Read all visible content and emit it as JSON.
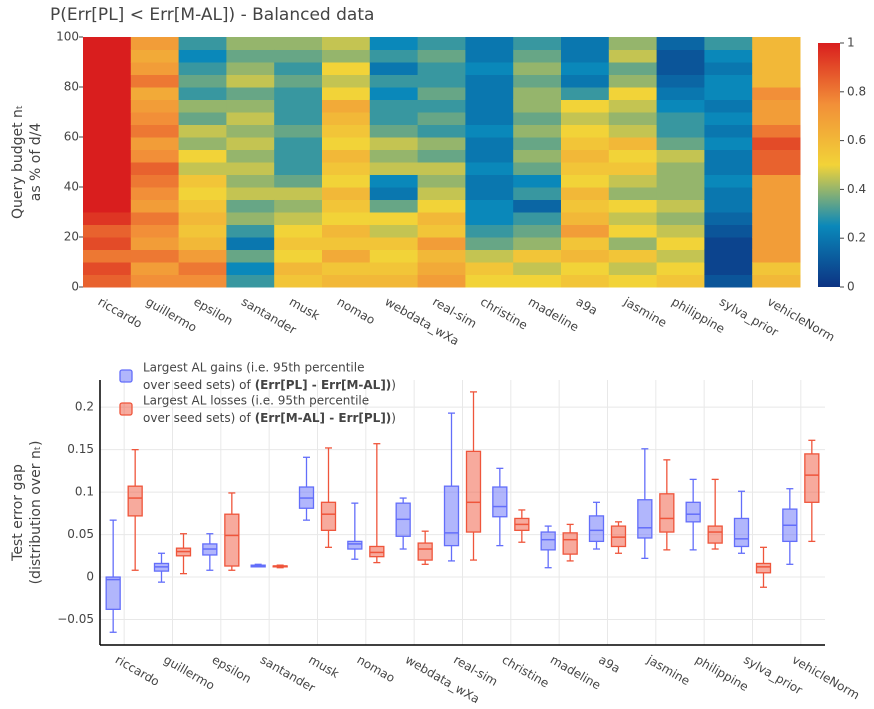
{
  "chart_data": [
    {
      "type": "heatmap",
      "title": "P(Err[PL] < Err[M-AL]) - Balanced data",
      "y_label": [
        "Query budget nₜ",
        "as % of d/4"
      ],
      "categories": [
        "riccardo",
        "guillermo",
        "epsilon",
        "santander",
        "musk",
        "nomao",
        "webdata_wXa",
        "real-sim",
        "christine",
        "madeline",
        "a9a",
        "jasmine",
        "philippine",
        "sylva_prior",
        "vehicleNorm"
      ],
      "ylim": [
        0,
        100
      ],
      "yticks": [
        0,
        20,
        40,
        60,
        80,
        100
      ],
      "colorscale": [
        [
          0,
          "rgb(12,51,131)"
        ],
        [
          0.25,
          "rgb(10,136,186)"
        ],
        [
          0.5,
          "rgb(242,211,56)"
        ],
        [
          0.75,
          "rgb(242,143,56)"
        ],
        [
          1,
          "rgb(217,30,30)"
        ]
      ],
      "zlim": [
        0,
        1
      ],
      "colorbar_ticks": [
        0,
        0.2,
        0.4,
        0.6,
        0.8,
        1
      ],
      "z": [
        [
          0.85,
          0.9,
          0.8,
          0.9,
          0.85,
          0.95,
          1,
          1,
          1,
          1,
          1,
          1,
          1,
          1,
          1,
          1,
          1,
          1,
          1,
          1
        ],
        [
          0.75,
          0.7,
          0.8,
          0.7,
          0.75,
          0.8,
          0.7,
          0.75,
          0.8,
          0.85,
          0.75,
          0.7,
          0.8,
          0.75,
          0.7,
          0.65,
          0.8,
          0.7,
          0.65,
          0.7
        ],
        [
          0.75,
          0.8,
          0.7,
          0.6,
          0.55,
          0.6,
          0.55,
          0.5,
          0.55,
          0.45,
          0.5,
          0.4,
          0.45,
          0.35,
          0.4,
          0.3,
          0.35,
          0.3,
          0.25,
          0.3
        ],
        [
          0.3,
          0.25,
          0.35,
          0.2,
          0.3,
          0.4,
          0.35,
          0.45,
          0.4,
          0.45,
          0.4,
          0.45,
          0.4,
          0.45,
          0.4,
          0.35,
          0.45,
          0.4,
          0.35,
          0.4
        ],
        [
          0.55,
          0.6,
          0.5,
          0.55,
          0.5,
          0.45,
          0.4,
          0.45,
          0.35,
          0.3,
          0.3,
          0.3,
          0.35,
          0.3,
          0.3,
          0.3,
          0.35,
          0.3,
          0.35,
          0.4
        ],
        [
          0.6,
          0.55,
          0.65,
          0.55,
          0.6,
          0.5,
          0.55,
          0.6,
          0.5,
          0.55,
          0.6,
          0.5,
          0.55,
          0.6,
          0.65,
          0.5,
          0.45,
          0.5,
          0.4,
          0.45
        ],
        [
          0.6,
          0.55,
          0.5,
          0.55,
          0.45,
          0.5,
          0.35,
          0.2,
          0.25,
          0.45,
          0.4,
          0.45,
          0.35,
          0.3,
          0.3,
          0.25,
          0.3,
          0.2,
          0.3,
          0.25
        ],
        [
          0.7,
          0.65,
          0.6,
          0.7,
          0.55,
          0.6,
          0.5,
          0.45,
          0.4,
          0.45,
          0.35,
          0.4,
          0.3,
          0.35,
          0.3,
          0.35,
          0.3,
          0.3,
          0.35,
          0.3
        ],
        [
          0.5,
          0.55,
          0.45,
          0.35,
          0.3,
          0.25,
          0.25,
          0.2,
          0.2,
          0.25,
          0.2,
          0.2,
          0.25,
          0.2,
          0.2,
          0.2,
          0.2,
          0.25,
          0.2,
          0.2
        ],
        [
          0.5,
          0.45,
          0.55,
          0.4,
          0.35,
          0.3,
          0.15,
          0.3,
          0.25,
          0.35,
          0.4,
          0.35,
          0.4,
          0.35,
          0.4,
          0.4,
          0.35,
          0.4,
          0.35,
          0.3
        ],
        [
          0.55,
          0.5,
          0.6,
          0.55,
          0.7,
          0.6,
          0.55,
          0.6,
          0.5,
          0.55,
          0.6,
          0.55,
          0.5,
          0.45,
          0.5,
          0.3,
          0.2,
          0.25,
          0.2,
          0.2
        ],
        [
          0.5,
          0.45,
          0.55,
          0.4,
          0.5,
          0.45,
          0.5,
          0.4,
          0.45,
          0.55,
          0.5,
          0.6,
          0.45,
          0.4,
          0.45,
          0.5,
          0.4,
          0.35,
          0.45,
          0.4
        ],
        [
          0.55,
          0.5,
          0.45,
          0.5,
          0.45,
          0.4,
          0.45,
          0.4,
          0.4,
          0.4,
          0.45,
          0.35,
          0.3,
          0.3,
          0.25,
          0.2,
          0.15,
          0.1,
          0.1,
          0.15
        ],
        [
          0.1,
          0.05,
          0.05,
          0.05,
          0.1,
          0.15,
          0.2,
          0.2,
          0.25,
          0.2,
          0.2,
          0.25,
          0.2,
          0.25,
          0.2,
          0.25,
          0.25,
          0.2,
          0.25,
          0.3
        ],
        [
          0.6,
          0.55,
          0.7,
          0.7,
          0.7,
          0.7,
          0.7,
          0.7,
          0.7,
          0.85,
          0.85,
          0.9,
          0.8,
          0.7,
          0.7,
          0.75,
          0.6,
          0.6,
          0.6,
          0.6
        ]
      ]
    },
    {
      "type": "box",
      "y_label": [
        "Test error gap",
        "(distribution over nₜ)"
      ],
      "categories": [
        "riccardo",
        "guillermo",
        "epsilon",
        "santander",
        "musk",
        "nomao",
        "webdata_wXa",
        "real-sim",
        "christine",
        "madeline",
        "a9a",
        "jasmine",
        "philippine",
        "sylva_prior",
        "vehicleNorm"
      ],
      "ylim": [
        -0.08,
        0.232
      ],
      "yticks": [
        {
          "value": -0.05,
          "label": "−0.05"
        },
        0,
        0.05,
        0.1,
        0.15,
        0.2
      ],
      "grid": true,
      "series": [
        {
          "name": [
            "Largest AL gains (i.e. 95th percentile",
            "over seed sets) of",
            "(Err[PL] - Err[M-AL])",
            ")"
          ],
          "color": "#636efa",
          "lowerfence": [
            -0.065,
            -0.006,
            0.008,
            0.012,
            0.067,
            0.021,
            0.033,
            0.019,
            0.037,
            0.011,
            0.033,
            0.022,
            0.032,
            0.028,
            0.015
          ],
          "q1": [
            -0.038,
            0.007,
            0.026,
            0.012,
            0.081,
            0.033,
            0.048,
            0.037,
            0.071,
            0.032,
            0.042,
            0.046,
            0.065,
            0.036,
            0.042
          ],
          "median": [
            -0.003,
            0.012,
            0.033,
            0.013,
            0.093,
            0.039,
            0.068,
            0.052,
            0.083,
            0.044,
            0.055,
            0.058,
            0.074,
            0.045,
            0.061
          ],
          "q3": [
            0,
            0.016,
            0.039,
            0.014,
            0.106,
            0.042,
            0.087,
            0.107,
            0.106,
            0.053,
            0.072,
            0.091,
            0.088,
            0.069,
            0.08
          ],
          "upperfence": [
            0.067,
            0.028,
            0.051,
            0.015,
            0.141,
            0.087,
            0.093,
            0.193,
            0.128,
            0.06,
            0.088,
            0.151,
            0.115,
            0.101,
            0.104
          ]
        },
        {
          "name": [
            "Largest AL losses (i.e. 95th percentile",
            "over seed sets) of",
            "(Err[M-AL] - Err[PL])",
            ")"
          ],
          "color": "#ef553b",
          "lowerfence": [
            0.008,
            0.004,
            0.008,
            0.011,
            0.035,
            0.017,
            0.015,
            0.02,
            0.041,
            0.019,
            0.028,
            0.032,
            0.033,
            -0.012,
            0.042
          ],
          "q1": [
            0.072,
            0.025,
            0.013,
            0.012,
            0.055,
            0.024,
            0.02,
            0.053,
            0.055,
            0.027,
            0.036,
            0.053,
            0.04,
            0.005,
            0.088
          ],
          "median": [
            0.093,
            0.03,
            0.049,
            0.013,
            0.074,
            0.029,
            0.033,
            0.088,
            0.062,
            0.044,
            0.047,
            0.069,
            0.053,
            0.012,
            0.12
          ],
          "q3": [
            0.107,
            0.034,
            0.074,
            0.013,
            0.088,
            0.036,
            0.04,
            0.148,
            0.069,
            0.052,
            0.06,
            0.098,
            0.06,
            0.016,
            0.145
          ],
          "upperfence": [
            0.15,
            0.051,
            0.099,
            0.014,
            0.152,
            0.157,
            0.054,
            0.218,
            0.079,
            0.062,
            0.065,
            0.138,
            0.115,
            0.035,
            0.161
          ]
        }
      ]
    }
  ]
}
